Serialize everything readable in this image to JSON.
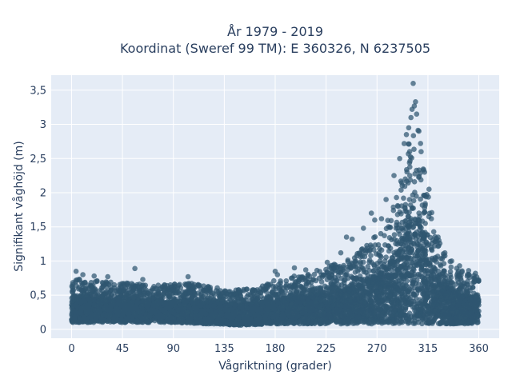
{
  "chart_data": {
    "type": "scatter",
    "title_lines": [
      "År 1979 - 2019",
      "Koordinat (Sweref 99 TM): E 360326, N 6237505"
    ],
    "xlabel": "Vågriktning (grader)",
    "ylabel": "Signifikant våghöjd (m)",
    "xlim": [
      -18,
      378
    ],
    "ylim": [
      -0.13,
      3.72
    ],
    "x_ticks": [
      0,
      45,
      90,
      135,
      180,
      225,
      270,
      315,
      360
    ],
    "x_tick_labels": [
      "0",
      "45",
      "90",
      "135",
      "180",
      "225",
      "270",
      "315",
      "360"
    ],
    "y_ticks": [
      0,
      0.5,
      1,
      1.5,
      2,
      2.5,
      3,
      3.5
    ],
    "y_tick_labels": [
      "0",
      "0,5",
      "1",
      "1,5",
      "2",
      "2,5",
      "3",
      "3,5"
    ],
    "grid": true,
    "legend": "none",
    "colors": {
      "marker": "#2f5670",
      "plot_bg": "#e5ecf6",
      "grid": "#ffffff",
      "text": "#2a3f5f"
    },
    "envelope": {
      "x": [
        0,
        15,
        30,
        45,
        60,
        75,
        90,
        105,
        120,
        135,
        150,
        165,
        180,
        195,
        210,
        225,
        240,
        255,
        265,
        275,
        285,
        290,
        295,
        300,
        305,
        310,
        315,
        320,
        325,
        330,
        340,
        350,
        360
      ],
      "y_min": [
        0.1,
        0.1,
        0.1,
        0.1,
        0.1,
        0.1,
        0.1,
        0.09,
        0.08,
        0.07,
        0.06,
        0.07,
        0.08,
        0.08,
        0.08,
        0.08,
        0.08,
        0.08,
        0.08,
        0.08,
        0.08,
        0.08,
        0.08,
        0.08,
        0.08,
        0.08,
        0.08,
        0.08,
        0.08,
        0.08,
        0.08,
        0.08,
        0.1
      ],
      "y_max": [
        0.75,
        0.72,
        0.7,
        0.68,
        0.68,
        0.66,
        0.66,
        0.68,
        0.63,
        0.6,
        0.6,
        0.62,
        0.72,
        0.78,
        0.82,
        0.92,
        1.0,
        1.15,
        1.3,
        1.5,
        1.85,
        2.1,
        2.5,
        2.9,
        3.05,
        2.6,
        2.0,
        1.6,
        1.3,
        1.1,
        0.9,
        0.82,
        0.78
      ]
    },
    "outliers": [
      {
        "x": 4,
        "y": 0.85
      },
      {
        "x": 10,
        "y": 0.8
      },
      {
        "x": 20,
        "y": 0.78
      },
      {
        "x": 32,
        "y": 0.77
      },
      {
        "x": 56,
        "y": 0.89
      },
      {
        "x": 63,
        "y": 0.73
      },
      {
        "x": 103,
        "y": 0.77
      },
      {
        "x": 180,
        "y": 0.85
      },
      {
        "x": 182,
        "y": 0.8
      },
      {
        "x": 197,
        "y": 0.9
      },
      {
        "x": 207,
        "y": 0.87
      },
      {
        "x": 226,
        "y": 0.98
      },
      {
        "x": 238,
        "y": 1.12
      },
      {
        "x": 243,
        "y": 1.35
      },
      {
        "x": 248,
        "y": 1.32
      },
      {
        "x": 258,
        "y": 1.48
      },
      {
        "x": 265,
        "y": 1.7
      },
      {
        "x": 268,
        "y": 1.6
      },
      {
        "x": 274,
        "y": 1.62
      },
      {
        "x": 278,
        "y": 1.9
      },
      {
        "x": 285,
        "y": 2.25
      },
      {
        "x": 290,
        "y": 2.5
      },
      {
        "x": 294,
        "y": 2.72
      },
      {
        "x": 296,
        "y": 2.85
      },
      {
        "x": 298,
        "y": 2.95
      },
      {
        "x": 300,
        "y": 3.1
      },
      {
        "x": 301,
        "y": 3.22
      },
      {
        "x": 303,
        "y": 3.27
      },
      {
        "x": 302,
        "y": 3.6
      },
      {
        "x": 304,
        "y": 3.33
      },
      {
        "x": 305,
        "y": 3.15
      },
      {
        "x": 307,
        "y": 2.9
      },
      {
        "x": 309,
        "y": 2.6
      },
      {
        "x": 312,
        "y": 2.3
      },
      {
        "x": 316,
        "y": 2.05
      },
      {
        "x": 318,
        "y": 1.62
      },
      {
        "x": 324,
        "y": 1.35
      },
      {
        "x": 330,
        "y": 1.12
      },
      {
        "x": 336,
        "y": 1.0
      },
      {
        "x": 343,
        "y": 0.93
      },
      {
        "x": 351,
        "y": 0.86
      },
      {
        "x": 357,
        "y": 0.82
      }
    ]
  }
}
